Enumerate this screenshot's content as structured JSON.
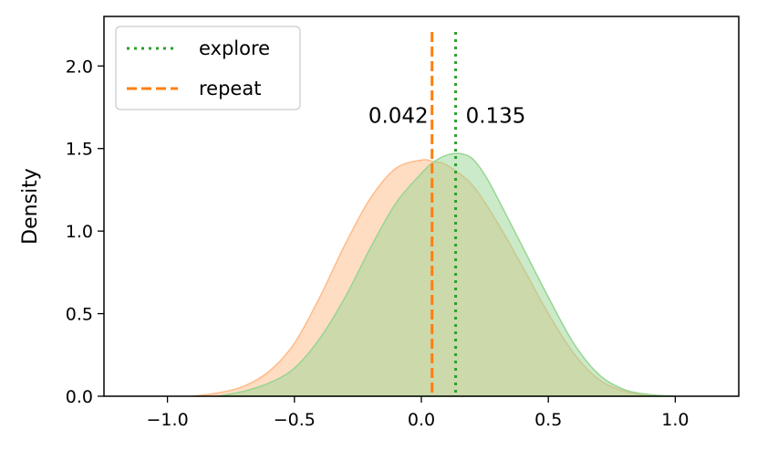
{
  "chart_data": {
    "type": "area",
    "title": "",
    "xlabel": "",
    "ylabel": "Density",
    "xlim": [
      -1.25,
      1.25
    ],
    "ylim": [
      0.0,
      2.3
    ],
    "xticks": [
      -1.0,
      -0.5,
      0.0,
      0.5,
      1.0
    ],
    "xtick_labels": [
      "−1.0",
      "−0.5",
      "0.0",
      "0.5",
      "1.0"
    ],
    "yticks": [
      0.0,
      0.5,
      1.0,
      1.5,
      2.0
    ],
    "ytick_labels": [
      "0.0",
      "0.5",
      "1.0",
      "1.5",
      "2.0"
    ],
    "grid": false,
    "legend_position": "top-left",
    "series": [
      {
        "name": "explore",
        "color": "#2ca02c",
        "fill_color": "#98d594",
        "line_style": "dotted",
        "mean": 0.135,
        "x": [
          -0.8,
          -0.7,
          -0.6,
          -0.5,
          -0.4,
          -0.3,
          -0.2,
          -0.1,
          0.0,
          0.05,
          0.1,
          0.15,
          0.2,
          0.25,
          0.3,
          0.4,
          0.5,
          0.6,
          0.7,
          0.8,
          0.9,
          1.0
        ],
        "density": [
          0.0,
          0.03,
          0.08,
          0.17,
          0.35,
          0.6,
          0.9,
          1.17,
          1.35,
          1.42,
          1.46,
          1.47,
          1.44,
          1.34,
          1.2,
          0.9,
          0.6,
          0.32,
          0.13,
          0.04,
          0.01,
          0.0
        ]
      },
      {
        "name": "repeat",
        "color": "#ff7f0e",
        "fill_color": "#ffbb88",
        "line_style": "dashed",
        "mean": 0.042,
        "x": [
          -0.9,
          -0.8,
          -0.7,
          -0.6,
          -0.5,
          -0.4,
          -0.3,
          -0.2,
          -0.1,
          0.0,
          0.05,
          0.1,
          0.2,
          0.3,
          0.4,
          0.5,
          0.6,
          0.7,
          0.8,
          0.9
        ],
        "density": [
          0.0,
          0.02,
          0.06,
          0.15,
          0.32,
          0.6,
          0.92,
          1.2,
          1.38,
          1.43,
          1.42,
          1.4,
          1.28,
          1.05,
          0.78,
          0.5,
          0.26,
          0.1,
          0.03,
          0.0
        ]
      }
    ],
    "annotations": [
      {
        "text": "0.042",
        "x": 0.042,
        "y": 1.7,
        "anchor": "end"
      },
      {
        "text": "0.135",
        "x": 0.135,
        "y": 1.7,
        "anchor": "start"
      }
    ]
  }
}
